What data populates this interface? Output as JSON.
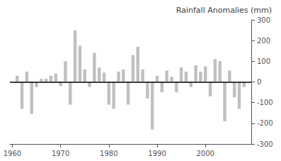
{
  "chart_data": {
    "type": "bar",
    "ylabel": "Rainfall Anomalies (mm)",
    "x": [
      1961,
      1962,
      1963,
      1964,
      1965,
      1966,
      1967,
      1968,
      1969,
      1970,
      1971,
      1972,
      1973,
      1974,
      1975,
      1976,
      1977,
      1978,
      1979,
      1980,
      1981,
      1982,
      1983,
      1984,
      1985,
      1986,
      1987,
      1988,
      1989,
      1990,
      1991,
      1992,
      1993,
      1994,
      1995,
      1996,
      1997,
      1998,
      1999,
      2000,
      2001,
      2002,
      2003,
      2004,
      2005,
      2006,
      2007,
      2008
    ],
    "values": [
      30,
      -130,
      50,
      -155,
      -25,
      15,
      15,
      30,
      40,
      -20,
      100,
      -110,
      250,
      175,
      60,
      -25,
      140,
      70,
      45,
      -110,
      -130,
      50,
      60,
      -110,
      130,
      170,
      60,
      -80,
      -230,
      30,
      -50,
      55,
      25,
      -50,
      70,
      50,
      -25,
      80,
      50,
      75,
      -70,
      110,
      100,
      -190,
      55,
      -75,
      -130,
      -25
    ],
    "color": "#c0c0c0",
    "xlim": [
      1959.5,
      2009.5
    ],
    "xticks": [
      1960,
      1970,
      1980,
      1990,
      2000
    ],
    "ylim": [
      -300,
      300
    ],
    "yticks": [
      -300,
      -200,
      -100,
      0,
      100,
      200,
      300
    ],
    "grid": false
  }
}
